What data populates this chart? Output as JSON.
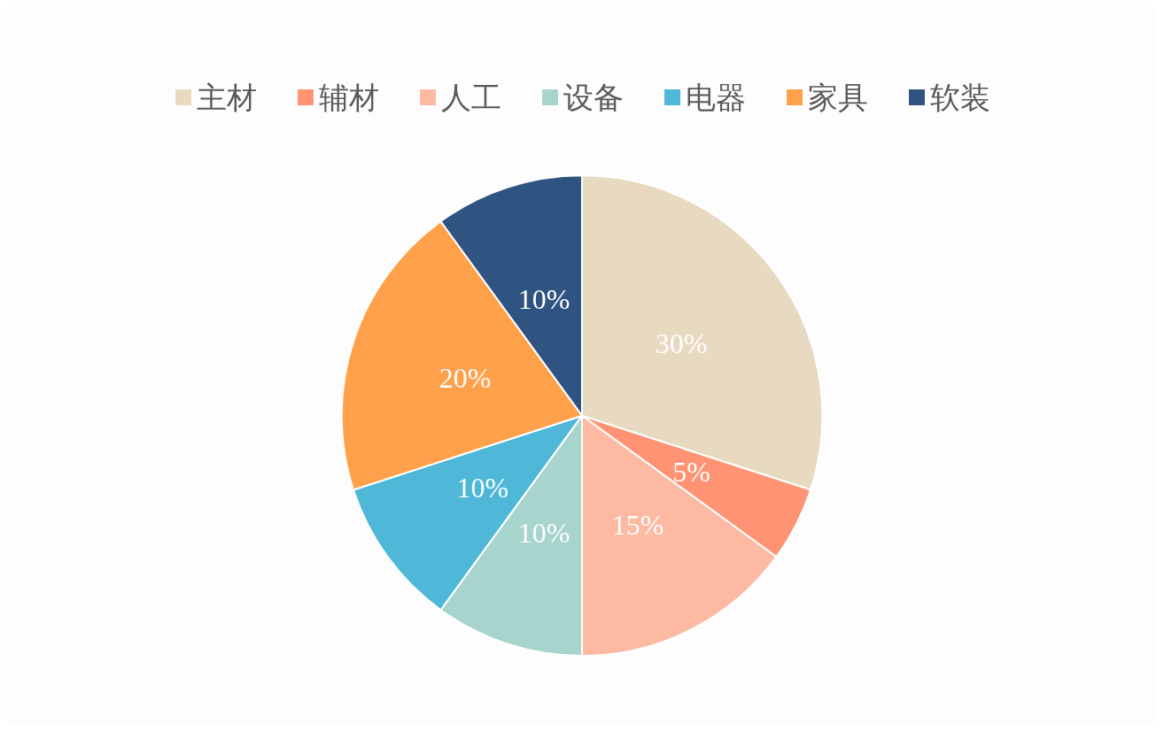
{
  "chart_data": {
    "type": "pie",
    "categories": [
      "主材",
      "辅材",
      "人工",
      "设备",
      "电器",
      "家具",
      "软装"
    ],
    "values": [
      30,
      5,
      15,
      10,
      10,
      20,
      10
    ],
    "value_labels": [
      "30%",
      "5%",
      "15%",
      "10%",
      "10%",
      "20%",
      "10%"
    ],
    "colors": [
      "#e8d9c1",
      "#ff9373",
      "#fdb9a2",
      "#a7d4cc",
      "#4fb7d8",
      "#ffa04a",
      "#305482"
    ],
    "legend": "top"
  }
}
